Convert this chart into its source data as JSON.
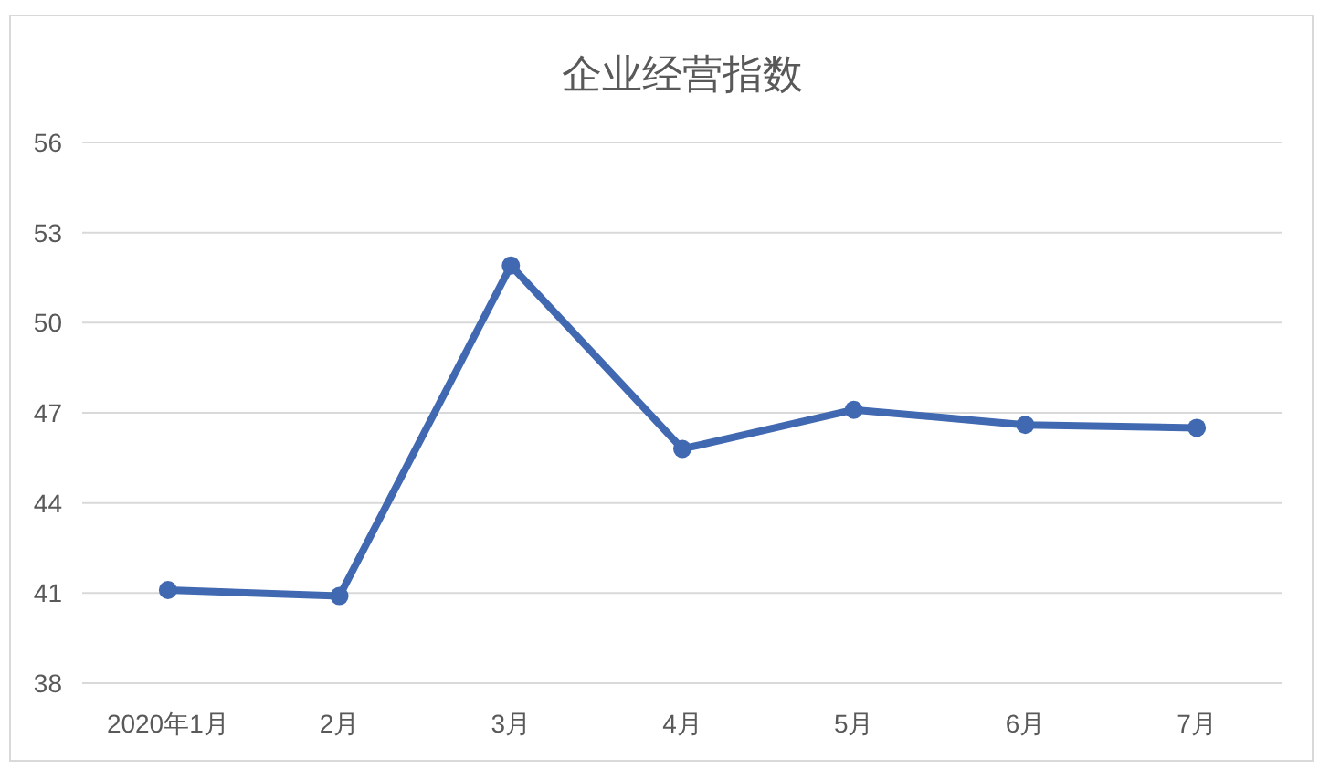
{
  "chart_data": {
    "type": "line",
    "title": "企业经营指数",
    "categories": [
      "2020年1月",
      "2月",
      "3月",
      "4月",
      "5月",
      "6月",
      "7月"
    ],
    "series": [
      {
        "color": "#4169b1",
        "values": [
          41.1,
          40.9,
          51.9,
          45.8,
          47.1,
          46.6,
          46.5
        ]
      }
    ],
    "ylim": [
      38,
      56
    ],
    "yticks": [
      38,
      41,
      44,
      47,
      50,
      53,
      56
    ],
    "grid": "y",
    "marker": "circle",
    "line_style": "solid"
  }
}
